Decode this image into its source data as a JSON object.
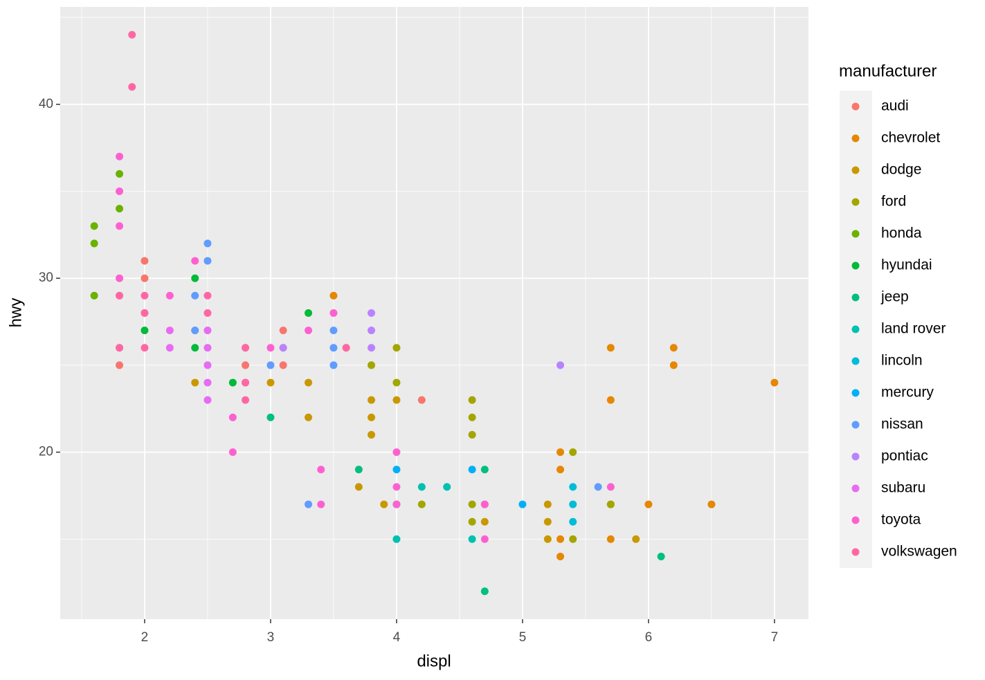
{
  "chart_data": {
    "type": "scatter",
    "x_label": "displ",
    "y_label": "hwy",
    "legend_title": "manufacturer",
    "xlim": [
      1.33,
      7.27
    ],
    "ylim": [
      10.4,
      45.6
    ],
    "xticks": [
      2,
      3,
      4,
      5,
      6,
      7
    ],
    "yticks": [
      20,
      30,
      40
    ],
    "x_minor_ticks": [
      1.5,
      2.5,
      3.5,
      4.5,
      5.5,
      6.5
    ],
    "y_minor_ticks": [
      15,
      25,
      35,
      45
    ],
    "grid": true,
    "legend_position": "right",
    "series": [
      {
        "name": "audi",
        "color": "#F8766D",
        "x": [
          1.8,
          2.0,
          2.0,
          2.8,
          3.1,
          1.8,
          1.8,
          2.0,
          2.8,
          3.1,
          2.8,
          4.2
        ],
        "values": [
          29,
          31,
          30,
          26,
          27,
          26,
          25,
          28,
          25,
          25,
          24,
          23
        ]
      },
      {
        "name": "chevrolet",
        "color": "#E58700",
        "x": [
          5.3,
          5.3,
          5.7,
          6.0,
          5.7,
          5.7,
          6.2,
          6.2,
          7.0,
          5.3,
          5.3,
          5.7,
          6.5,
          2.4,
          3.1,
          3.5,
          3.6
        ],
        "values": [
          20,
          15,
          17,
          17,
          26,
          23,
          26,
          25,
          24,
          19,
          14,
          15,
          17,
          27,
          26,
          29,
          26
        ]
      },
      {
        "name": "dodge",
        "color": "#C99800",
        "x": [
          2.4,
          3.0,
          3.3,
          3.3,
          3.8,
          3.8,
          3.8,
          4.0,
          3.7,
          3.9,
          4.7,
          4.7,
          5.2,
          5.2,
          5.2,
          5.9
        ],
        "values": [
          24,
          24,
          22,
          24,
          22,
          21,
          23,
          23,
          18,
          17,
          17,
          16,
          15,
          17,
          16,
          15
        ]
      },
      {
        "name": "ford",
        "color": "#A3A500",
        "x": [
          3.8,
          4.0,
          4.0,
          4.6,
          4.6,
          4.6,
          4.6,
          4.6,
          4.2,
          5.4,
          5.4,
          5.7
        ],
        "values": [
          25,
          26,
          24,
          23,
          22,
          21,
          17,
          16,
          17,
          20,
          15,
          17
        ]
      },
      {
        "name": "honda",
        "color": "#6BB100",
        "x": [
          1.6,
          1.6,
          1.6,
          1.8,
          1.8
        ],
        "values": [
          33,
          32,
          29,
          34,
          36
        ]
      },
      {
        "name": "hyundai",
        "color": "#00BA38",
        "x": [
          2.0,
          2.4,
          2.4,
          2.7,
          3.3
        ],
        "values": [
          27,
          30,
          26,
          24,
          28
        ]
      },
      {
        "name": "jeep",
        "color": "#00BF7D",
        "x": [
          3.0,
          3.7,
          4.7,
          4.7,
          6.1
        ],
        "values": [
          22,
          19,
          19,
          12,
          14
        ]
      },
      {
        "name": "land rover",
        "color": "#00C0AF",
        "x": [
          4.0,
          4.2,
          4.4,
          4.6
        ],
        "values": [
          15,
          18,
          18,
          15
        ]
      },
      {
        "name": "lincoln",
        "color": "#00BCD8",
        "x": [
          5.4,
          5.4,
          5.4
        ],
        "values": [
          18,
          17,
          16
        ]
      },
      {
        "name": "mercury",
        "color": "#00B0F6",
        "x": [
          4.0,
          4.0,
          4.6,
          5.0
        ],
        "values": [
          19,
          17,
          19,
          17
        ]
      },
      {
        "name": "nissan",
        "color": "#619CFF",
        "x": [
          2.4,
          2.4,
          2.5,
          2.5,
          3.0,
          3.3,
          3.5,
          3.5,
          3.5,
          5.6
        ],
        "values": [
          29,
          27,
          32,
          31,
          25,
          17,
          27,
          26,
          25,
          18
        ]
      },
      {
        "name": "pontiac",
        "color": "#B983FF",
        "x": [
          3.1,
          3.8,
          3.8,
          3.8,
          5.3
        ],
        "values": [
          26,
          28,
          27,
          26,
          25
        ]
      },
      {
        "name": "subaru",
        "color": "#E76BF3",
        "x": [
          2.2,
          2.2,
          2.5,
          2.5,
          2.5,
          2.5,
          2.5
        ],
        "values": [
          27,
          26,
          27,
          26,
          25,
          24,
          23
        ]
      },
      {
        "name": "toyota",
        "color": "#FD61D1",
        "x": [
          1.8,
          1.8,
          1.8,
          1.8,
          2.2,
          2.4,
          2.7,
          2.7,
          3.0,
          3.3,
          3.4,
          3.4,
          3.5,
          4.0,
          4.0,
          4.0,
          4.7,
          4.7,
          5.7
        ],
        "values": [
          37,
          35,
          33,
          30,
          29,
          31,
          22,
          20,
          26,
          27,
          19,
          17,
          28,
          20,
          18,
          17,
          17,
          15,
          18
        ]
      },
      {
        "name": "volkswagen",
        "color": "#FF67A4",
        "x": [
          1.9,
          1.9,
          1.8,
          1.8,
          2.0,
          2.0,
          2.0,
          2.5,
          2.5,
          2.8,
          2.8,
          2.8,
          3.6
        ],
        "values": [
          44,
          41,
          29,
          26,
          29,
          28,
          26,
          29,
          28,
          26,
          24,
          23,
          26
        ]
      }
    ]
  }
}
